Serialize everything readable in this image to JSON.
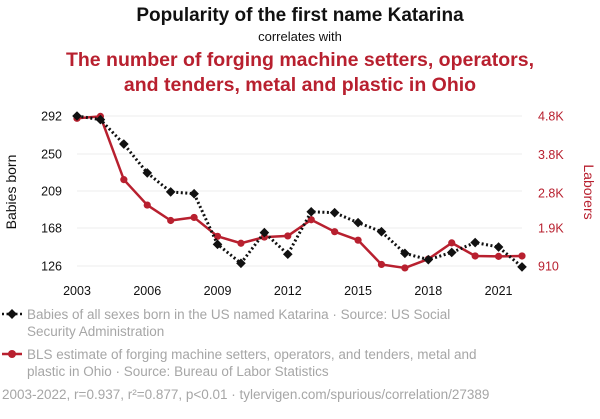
{
  "colors": {
    "series1": "#111111",
    "series2": "#b8202f",
    "grid": "#eeeeee",
    "muted": "#a6a6a6"
  },
  "chart_data": {
    "type": "line",
    "title": "Popularity of the first name Katarina",
    "subtitle": "correlates with",
    "title2_lines": [
      "The number of forging machine setters, operators,",
      "and tenders, metal and plastic in Ohio"
    ],
    "x": [
      2003,
      2004,
      2005,
      2006,
      2007,
      2008,
      2009,
      2010,
      2011,
      2012,
      2013,
      2014,
      2015,
      2016,
      2017,
      2018,
      2019,
      2020,
      2021,
      2022
    ],
    "x_ticks": [
      "2003",
      "2006",
      "2009",
      "2012",
      "2015",
      "2018",
      "2021"
    ],
    "y_left": {
      "label": "Babies born",
      "ticks": [
        "292",
        "250",
        "209",
        "168",
        "126"
      ],
      "tick_values": [
        292,
        250,
        209,
        168,
        126
      ],
      "ylim": [
        126,
        292
      ]
    },
    "y_right": {
      "label": "Laborers",
      "ticks": [
        "4.8K",
        "3.8K",
        "2.8K",
        "1.9K",
        "910"
      ],
      "tick_values": [
        4800,
        3800,
        2800,
        1900,
        910
      ],
      "ylim": [
        910,
        4800
      ]
    },
    "series": [
      {
        "name": "Babies of all sexes born in the US named Katarina",
        "axis": "left",
        "style": "dotted-diamond",
        "values": [
          292,
          288,
          261,
          229,
          208,
          206,
          150,
          129,
          163,
          139,
          186,
          185,
          174,
          164,
          140,
          133,
          141,
          152,
          147,
          125
        ]
      },
      {
        "name": "BLS estimate of forging machine setters, operators, and tenders, metal and plastic in Ohio",
        "axis": "right",
        "style": "solid-circle",
        "values": [
          4740,
          4790,
          3150,
          2490,
          2090,
          2170,
          1680,
          1500,
          1660,
          1690,
          2110,
          1800,
          1580,
          950,
          860,
          1090,
          1510,
          1170,
          1160,
          1170
        ]
      }
    ],
    "legend": [
      {
        "lines": [
          "Babies of all sexes born in the US named Katarina · Source: US Social",
          "Security Administration"
        ]
      },
      {
        "lines": [
          "BLS estimate of forging machine setters, operators, and tenders, metal and",
          "plastic in Ohio · Source: Bureau of Labor Statistics"
        ]
      }
    ],
    "footer": "2003-2022, r=0.937, r²=0.877, p<0.01 · tylervigen.com/spurious/correlation/27389"
  }
}
